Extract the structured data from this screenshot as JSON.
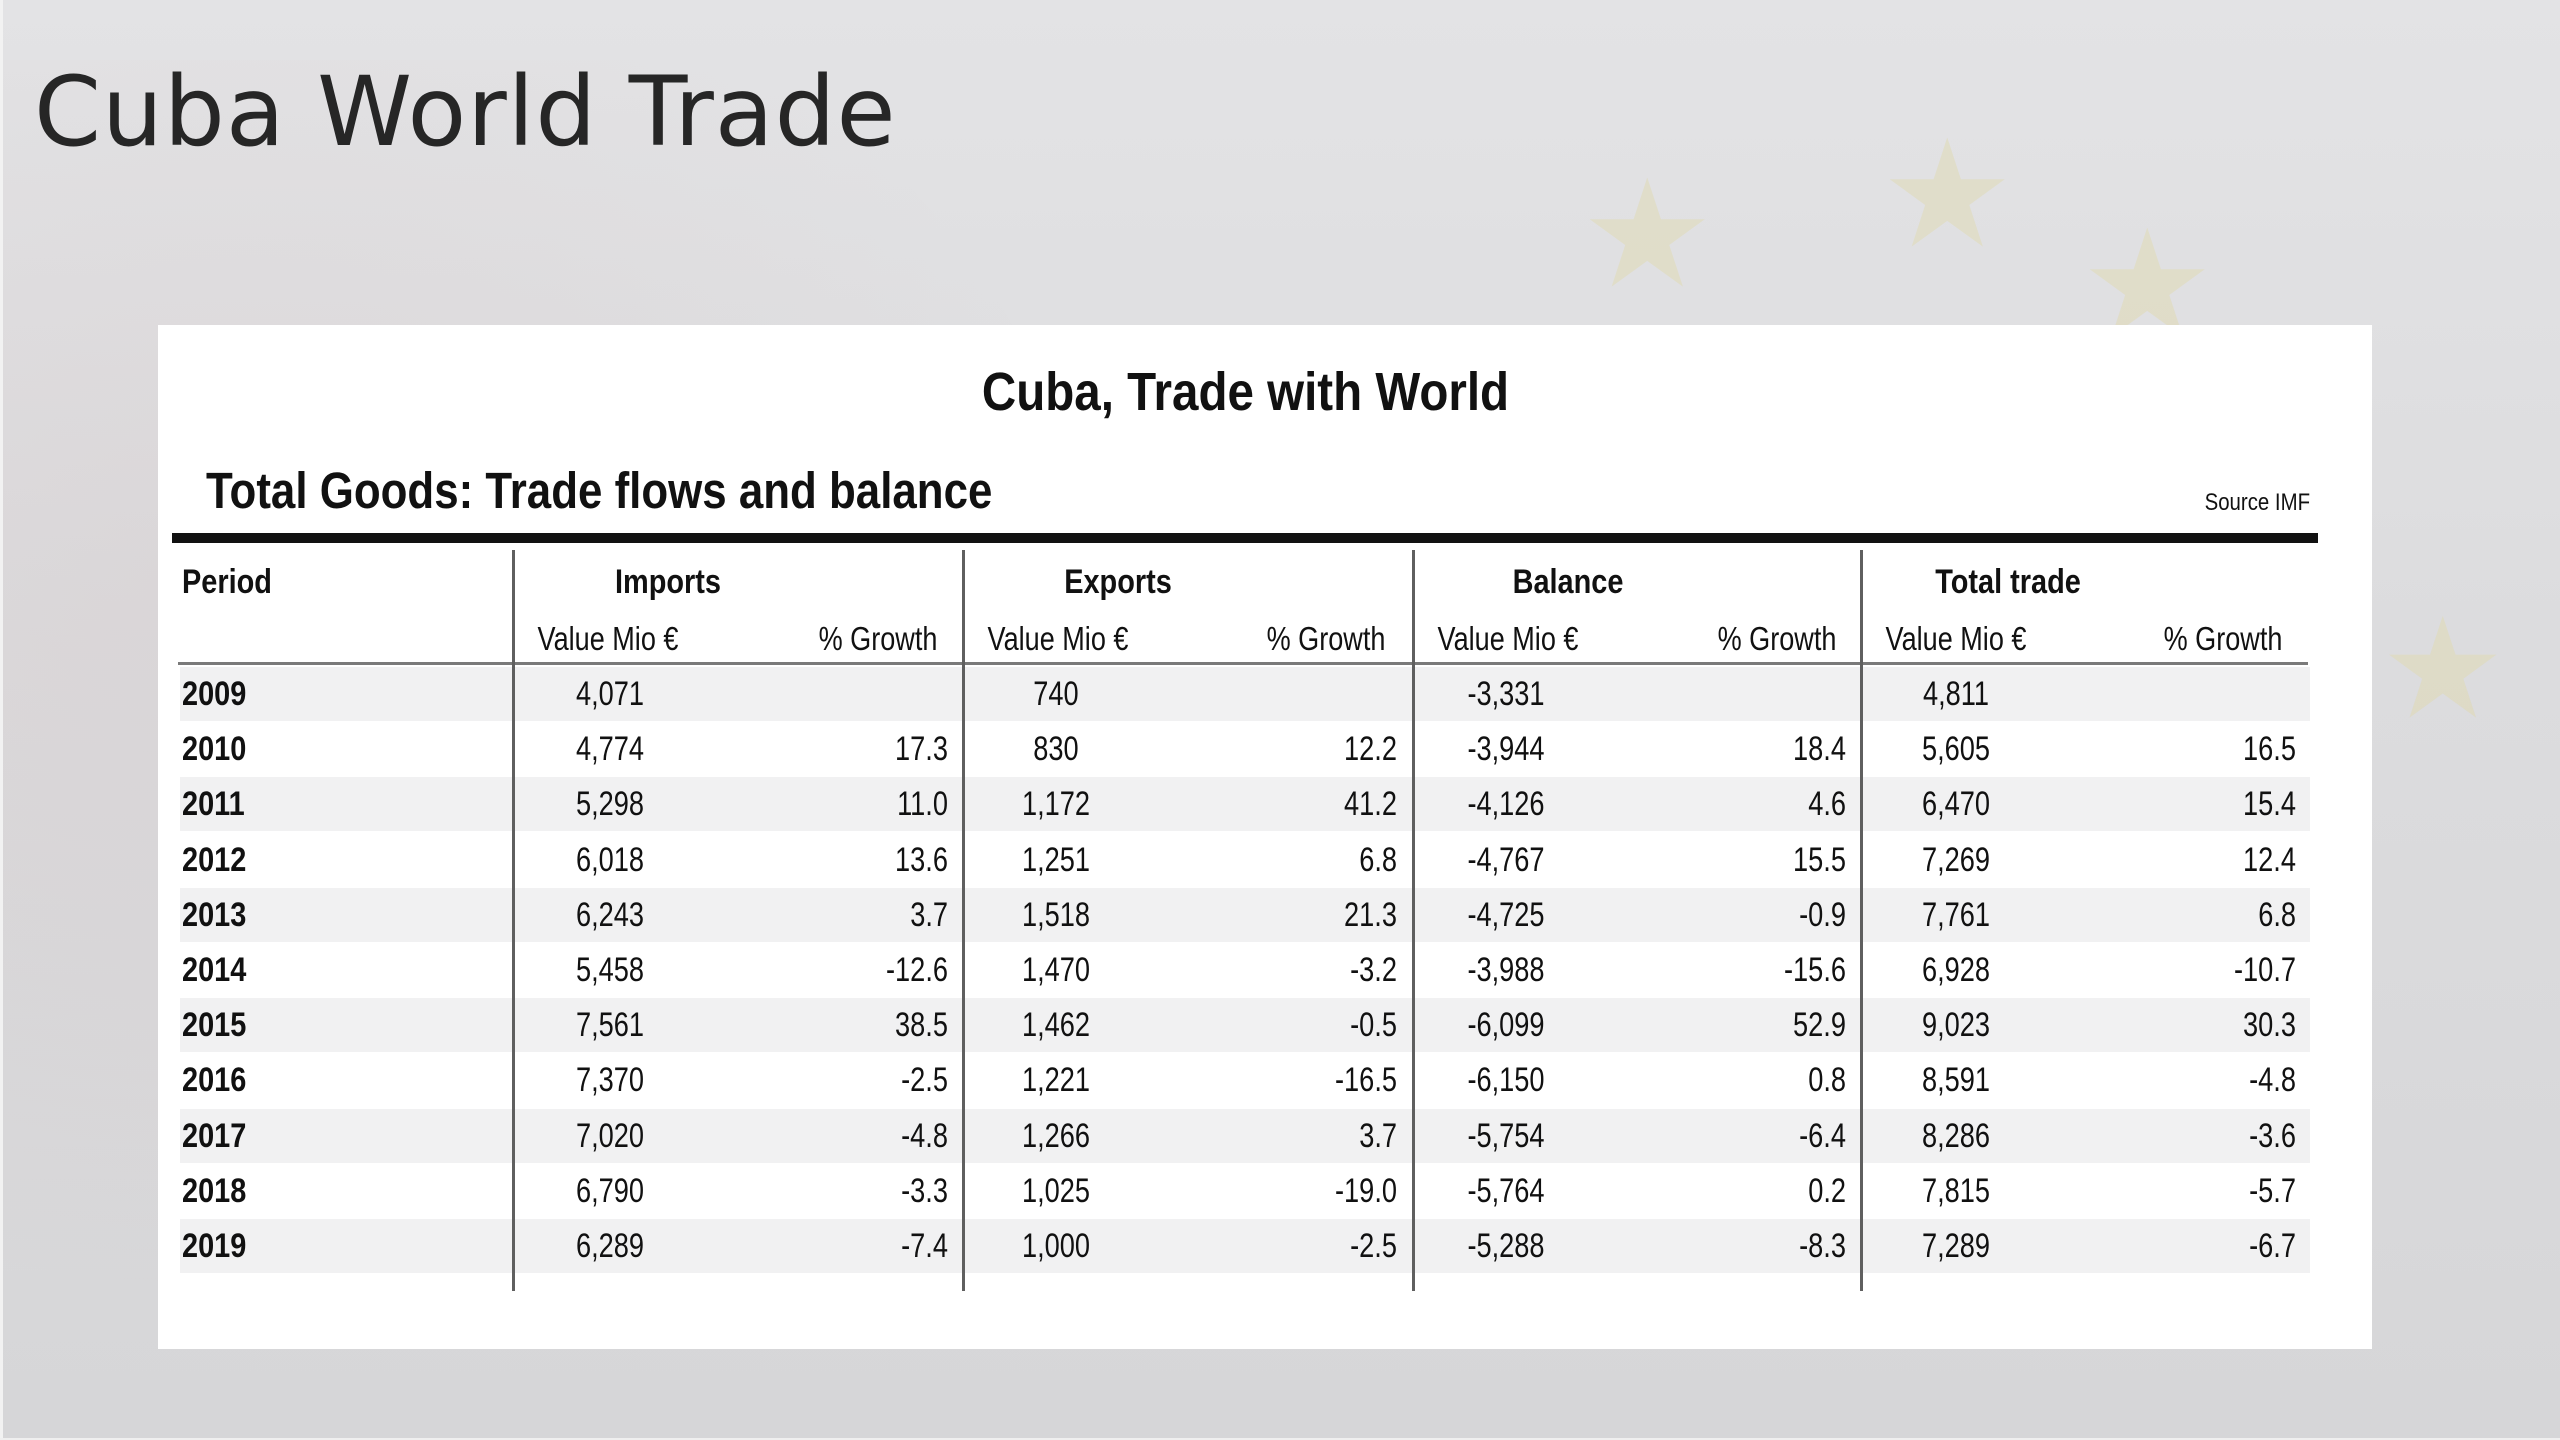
{
  "slide": {
    "title": "Cuba World Trade"
  },
  "table": {
    "title": "Cuba, Trade with World",
    "subtitle": "Total Goods: Trade flows and balance",
    "source": "Source IMF",
    "period_label": "Period",
    "groups": [
      "Imports",
      "Exports",
      "Balance",
      "Total trade"
    ],
    "subheaders": [
      "Value Mio €",
      "% Growth",
      "Value Mio €",
      "% Growth",
      "Value Mio €",
      "% Growth",
      "Value Mio €",
      "% Growth"
    ],
    "rows": [
      [
        "2009",
        "4,071",
        "",
        "740",
        "",
        "-3,331",
        "",
        "4,811",
        ""
      ],
      [
        "2010",
        "4,774",
        "17.3",
        "830",
        "12.2",
        "-3,944",
        "18.4",
        "5,605",
        "16.5"
      ],
      [
        "2011",
        "5,298",
        "11.0",
        "1,172",
        "41.2",
        "-4,126",
        "4.6",
        "6,470",
        "15.4"
      ],
      [
        "2012",
        "6,018",
        "13.6",
        "1,251",
        "6.8",
        "-4,767",
        "15.5",
        "7,269",
        "12.4"
      ],
      [
        "2013",
        "6,243",
        "3.7",
        "1,518",
        "21.3",
        "-4,725",
        "-0.9",
        "7,761",
        "6.8"
      ],
      [
        "2014",
        "5,458",
        "-12.6",
        "1,470",
        "-3.2",
        "-3,988",
        "-15.6",
        "6,928",
        "-10.7"
      ],
      [
        "2015",
        "7,561",
        "38.5",
        "1,462",
        "-0.5",
        "-6,099",
        "52.9",
        "9,023",
        "30.3"
      ],
      [
        "2016",
        "7,370",
        "-2.5",
        "1,221",
        "-16.5",
        "-6,150",
        "0.8",
        "8,591",
        "-4.8"
      ],
      [
        "2017",
        "7,020",
        "-4.8",
        "1,266",
        "3.7",
        "-5,754",
        "-6.4",
        "8,286",
        "-3.6"
      ],
      [
        "2018",
        "6,790",
        "-3.3",
        "1,025",
        "-19.0",
        "-5,764",
        "0.2",
        "7,815",
        "-5.7"
      ],
      [
        "2019",
        "6,289",
        "-7.4",
        "1,000",
        "-2.5",
        "-5,288",
        "-8.3",
        "7,289",
        "-6.7"
      ]
    ]
  },
  "chart_data": {
    "type": "table",
    "title": "Cuba, Trade with World",
    "subtitle": "Total Goods: Trade flows and balance",
    "source": "Source IMF",
    "columns": [
      "Period",
      "Imports Value Mio €",
      "Imports % Growth",
      "Exports Value Mio €",
      "Exports % Growth",
      "Balance Value Mio €",
      "Balance % Growth",
      "Total trade Value Mio €",
      "Total trade % Growth"
    ],
    "x": [
      "2009",
      "2010",
      "2011",
      "2012",
      "2013",
      "2014",
      "2015",
      "2016",
      "2017",
      "2018",
      "2019"
    ],
    "series": [
      {
        "name": "Imports",
        "values": [
          4071,
          4774,
          5298,
          6018,
          6243,
          5458,
          7561,
          7370,
          7020,
          6790,
          6289
        ],
        "growth": [
          null,
          17.3,
          11.0,
          13.6,
          3.7,
          -12.6,
          38.5,
          -2.5,
          -4.8,
          -3.3,
          -7.4
        ]
      },
      {
        "name": "Exports",
        "values": [
          740,
          830,
          1172,
          1251,
          1518,
          1470,
          1462,
          1221,
          1266,
          1025,
          1000
        ],
        "growth": [
          null,
          12.2,
          41.2,
          6.8,
          21.3,
          -3.2,
          -0.5,
          -16.5,
          3.7,
          -19.0,
          -2.5
        ]
      },
      {
        "name": "Balance",
        "values": [
          -3331,
          -3944,
          -4126,
          -4767,
          -4725,
          -3988,
          -6099,
          -6150,
          -5754,
          -5764,
          -5288
        ],
        "growth": [
          null,
          18.4,
          4.6,
          15.5,
          -0.9,
          -15.6,
          52.9,
          0.8,
          -6.4,
          0.2,
          -8.3
        ]
      },
      {
        "name": "Total trade",
        "values": [
          4811,
          5605,
          6470,
          7269,
          7761,
          6928,
          9023,
          8591,
          8286,
          7815,
          7289
        ],
        "growth": [
          null,
          16.5,
          15.4,
          12.4,
          6.8,
          -10.7,
          30.3,
          -4.8,
          -3.6,
          -5.7,
          -6.7
        ]
      }
    ]
  }
}
